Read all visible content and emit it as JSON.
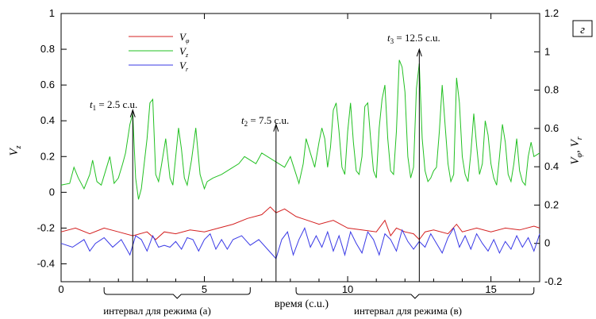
{
  "chart_data": {
    "type": "line",
    "panel_label": "г",
    "xlabel": "время (с.u.)",
    "ylabel_left": "V",
    "ylabel_left_sub": "z",
    "ylabel_right": "V",
    "ylabel_right_sub1": "φ",
    "ylabel_right_sep": ", V",
    "ylabel_right_sub2": "r",
    "xlim": [
      0,
      16.7
    ],
    "ylim_left": [
      -0.5,
      1.0
    ],
    "ylim_right": [
      -0.2,
      1.2
    ],
    "xticks": [
      0,
      5,
      10,
      15
    ],
    "yticks_left": [
      -0.4,
      -0.2,
      0,
      0.2,
      0.4,
      0.6,
      0.8,
      1
    ],
    "yticks_right": [
      -0.2,
      0,
      0.2,
      0.4,
      0.6,
      0.8,
      1,
      1.2
    ],
    "legend": {
      "position": "top-left",
      "entries": [
        {
          "name": "V",
          "sub": "φ",
          "color": "#d42020"
        },
        {
          "name": "V",
          "sub": "z",
          "color": "#22c022"
        },
        {
          "name": "V",
          "sub": "r",
          "color": "#3a3ae6"
        }
      ]
    },
    "annotations": [
      {
        "t": 2.5,
        "label": "t",
        "sub": "1",
        "text": " = 2.5 c.u.",
        "arrow_top_vz": 0.46
      },
      {
        "t": 7.5,
        "label": "t",
        "sub": "2",
        "text": " = 7.5 c.u.",
        "arrow_top_vz": 0.38
      },
      {
        "t": 12.5,
        "label": "t",
        "sub": "3",
        "text": " = 12.5 c.u.",
        "arrow_top_vz": 0.8
      }
    ],
    "intervals": [
      {
        "label": "интервал для режима (а)",
        "from": 1.5,
        "to": 6.6
      },
      {
        "label": "интервал для режима (в)",
        "from": 8.2,
        "to": 16.5
      }
    ],
    "series": [
      {
        "name": "Vz",
        "axis": "left",
        "color": "#22c022",
        "x": [
          0,
          0.3,
          0.45,
          0.6,
          0.8,
          1.0,
          1.1,
          1.25,
          1.4,
          1.55,
          1.7,
          1.85,
          2.0,
          2.15,
          2.25,
          2.4,
          2.5,
          2.6,
          2.7,
          2.8,
          3.0,
          3.1,
          3.2,
          3.3,
          3.4,
          3.5,
          3.65,
          3.8,
          3.9,
          4.0,
          4.1,
          4.2,
          4.3,
          4.4,
          4.55,
          4.7,
          4.85,
          5.0,
          5.1,
          5.3,
          5.6,
          5.8,
          6.0,
          6.2,
          6.4,
          6.6,
          6.8,
          7.0,
          7.2,
          7.4,
          7.6,
          7.8,
          8.0,
          8.2,
          8.3,
          8.45,
          8.55,
          8.7,
          8.85,
          9.0,
          9.1,
          9.2,
          9.3,
          9.4,
          9.5,
          9.6,
          9.7,
          9.8,
          9.9,
          10.0,
          10.1,
          10.2,
          10.3,
          10.4,
          10.5,
          10.6,
          10.7,
          10.8,
          10.9,
          11.0,
          11.1,
          11.2,
          11.3,
          11.4,
          11.5,
          11.6,
          11.7,
          11.8,
          11.9,
          12.0,
          12.1,
          12.2,
          12.3,
          12.4,
          12.5,
          12.6,
          12.7,
          12.8,
          12.9,
          13.0,
          13.1,
          13.2,
          13.3,
          13.4,
          13.5,
          13.6,
          13.7,
          13.8,
          13.9,
          14.0,
          14.1,
          14.2,
          14.3,
          14.4,
          14.5,
          14.6,
          14.7,
          14.8,
          14.9,
          15.0,
          15.1,
          15.2,
          15.3,
          15.4,
          15.5,
          15.6,
          15.7,
          15.8,
          15.9,
          16.0,
          16.1,
          16.2,
          16.3,
          16.4,
          16.5,
          16.7
        ],
        "y": [
          0.04,
          0.05,
          0.14,
          0.08,
          0.02,
          0.1,
          0.18,
          0.06,
          0.04,
          0.12,
          0.2,
          0.05,
          0.08,
          0.16,
          0.22,
          0.38,
          0.44,
          0.08,
          -0.04,
          0.02,
          0.3,
          0.5,
          0.52,
          0.1,
          0.06,
          0.15,
          0.3,
          0.08,
          0.04,
          0.2,
          0.36,
          0.24,
          0.08,
          0.04,
          0.18,
          0.36,
          0.1,
          0.02,
          0.06,
          0.08,
          0.1,
          0.12,
          0.14,
          0.16,
          0.2,
          0.18,
          0.16,
          0.22,
          0.2,
          0.18,
          0.16,
          0.14,
          0.2,
          0.1,
          0.05,
          0.16,
          0.3,
          0.22,
          0.14,
          0.28,
          0.36,
          0.3,
          0.14,
          0.25,
          0.46,
          0.5,
          0.34,
          0.14,
          0.1,
          0.34,
          0.5,
          0.28,
          0.12,
          0.1,
          0.2,
          0.48,
          0.5,
          0.3,
          0.12,
          0.08,
          0.36,
          0.52,
          0.6,
          0.3,
          0.12,
          0.1,
          0.34,
          0.74,
          0.7,
          0.56,
          0.2,
          0.08,
          0.14,
          0.58,
          0.72,
          0.3,
          0.12,
          0.06,
          0.08,
          0.12,
          0.14,
          0.34,
          0.6,
          0.38,
          0.16,
          0.06,
          0.1,
          0.64,
          0.5,
          0.2,
          0.1,
          0.06,
          0.22,
          0.44,
          0.26,
          0.1,
          0.16,
          0.4,
          0.32,
          0.16,
          0.08,
          0.04,
          0.2,
          0.38,
          0.28,
          0.1,
          0.06,
          0.16,
          0.3,
          0.12,
          0.06,
          0.04,
          0.2,
          0.28,
          0.2,
          0.22
        ]
      },
      {
        "name": "Vphi",
        "axis": "right",
        "color": "#d42020",
        "x": [
          0,
          0.5,
          1.0,
          1.5,
          2.0,
          2.5,
          3.0,
          3.3,
          3.6,
          4.0,
          4.5,
          5.0,
          5.5,
          6.0,
          6.5,
          7.0,
          7.3,
          7.5,
          7.8,
          8.2,
          8.6,
          9.0,
          9.5,
          10.0,
          10.5,
          11.0,
          11.3,
          11.5,
          11.7,
          12.0,
          12.3,
          12.5,
          12.7,
          13.0,
          13.5,
          13.8,
          14.0,
          14.5,
          15.0,
          15.5,
          16.0,
          16.5,
          16.7
        ],
        "y": [
          0.06,
          0.08,
          0.05,
          0.08,
          0.06,
          0.04,
          0.06,
          0.02,
          0.06,
          0.05,
          0.07,
          0.06,
          0.08,
          0.1,
          0.13,
          0.15,
          0.19,
          0.16,
          0.18,
          0.14,
          0.12,
          0.1,
          0.12,
          0.08,
          0.07,
          0.06,
          0.12,
          0.04,
          0.08,
          0.06,
          0.05,
          0.02,
          0.06,
          0.07,
          0.05,
          0.1,
          0.06,
          0.08,
          0.06,
          0.08,
          0.07,
          0.09,
          0.08
        ]
      },
      {
        "name": "Vr",
        "axis": "right",
        "color": "#3a3ae6",
        "x": [
          0,
          0.4,
          0.8,
          1.0,
          1.2,
          1.5,
          1.8,
          2.1,
          2.4,
          2.6,
          2.8,
          3.0,
          3.2,
          3.4,
          3.6,
          3.8,
          4.0,
          4.2,
          4.4,
          4.6,
          4.8,
          5.0,
          5.2,
          5.4,
          5.6,
          5.8,
          6.0,
          6.3,
          6.6,
          6.9,
          7.2,
          7.5,
          7.7,
          7.9,
          8.1,
          8.3,
          8.5,
          8.7,
          8.9,
          9.1,
          9.3,
          9.5,
          9.7,
          9.9,
          10.1,
          10.3,
          10.5,
          10.7,
          10.9,
          11.1,
          11.3,
          11.5,
          11.7,
          11.9,
          12.1,
          12.3,
          12.5,
          12.7,
          12.9,
          13.1,
          13.3,
          13.5,
          13.7,
          13.9,
          14.1,
          14.3,
          14.5,
          14.7,
          14.9,
          15.1,
          15.3,
          15.5,
          15.7,
          15.9,
          16.1,
          16.3,
          16.5,
          16.7
        ],
        "y": [
          0.0,
          -0.02,
          0.02,
          -0.04,
          0.0,
          0.03,
          -0.02,
          0.02,
          -0.06,
          0.04,
          0.02,
          -0.04,
          0.04,
          -0.02,
          -0.01,
          -0.02,
          0.01,
          -0.03,
          0.03,
          0.02,
          -0.04,
          0.02,
          0.05,
          -0.03,
          0.02,
          -0.03,
          0.02,
          0.04,
          -0.01,
          0.02,
          -0.03,
          -0.08,
          0.02,
          0.06,
          -0.06,
          0.02,
          0.08,
          -0.02,
          0.04,
          -0.02,
          0.06,
          -0.04,
          0.04,
          -0.06,
          0.06,
          0.0,
          -0.05,
          0.06,
          0.02,
          -0.06,
          0.05,
          0.02,
          -0.04,
          0.07,
          0.01,
          -0.03,
          0.01,
          -0.02,
          0.05,
          0.0,
          -0.05,
          0.03,
          0.08,
          -0.02,
          0.04,
          -0.03,
          0.05,
          0.0,
          -0.04,
          0.02,
          -0.05,
          0.01,
          -0.03,
          0.04,
          -0.02,
          0.03,
          -0.04,
          0.05
        ]
      }
    ]
  }
}
